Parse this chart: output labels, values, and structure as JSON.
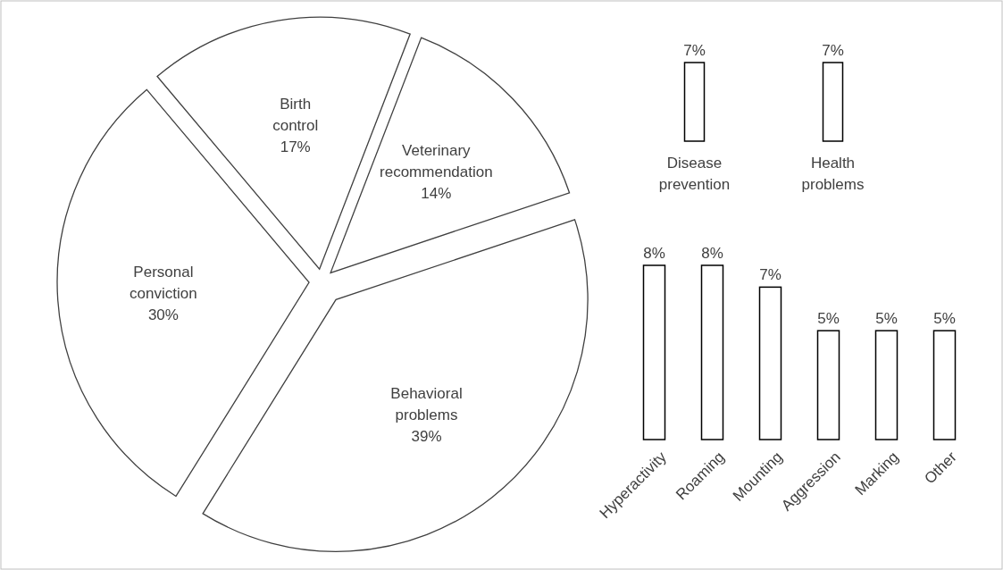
{
  "chart_data": [
    {
      "type": "pie",
      "categories": [
        "Birth control",
        "Veterinary recommendation",
        "Behavioral problems",
        "Personal conviction"
      ],
      "values": [
        17,
        14,
        39,
        30
      ],
      "colors": [
        "#ffffff",
        "#ffffff",
        "#ffffff",
        "#ffffff"
      ],
      "value_labels": [
        "17%",
        "14%",
        "39%",
        "30%"
      ]
    },
    {
      "type": "bar",
      "categories": [
        "Disease prevention",
        "Health problems"
      ],
      "values": [
        7,
        7
      ],
      "colors": [
        "#ffffff",
        "#ffffff"
      ],
      "value_labels": [
        "7%",
        "7%"
      ]
    },
    {
      "type": "bar",
      "categories": [
        "Hyperactivity",
        "Roaming",
        "Mounting",
        "Aggression",
        "Marking",
        "Other"
      ],
      "values": [
        8,
        8,
        7,
        5,
        5,
        5
      ],
      "colors": [
        "#ffffff",
        "#ffffff",
        "#ffffff",
        "#ffffff",
        "#ffffff",
        "#ffffff"
      ],
      "value_labels": [
        "8%",
        "8%",
        "7%",
        "5%",
        "5%",
        "5%"
      ]
    }
  ]
}
